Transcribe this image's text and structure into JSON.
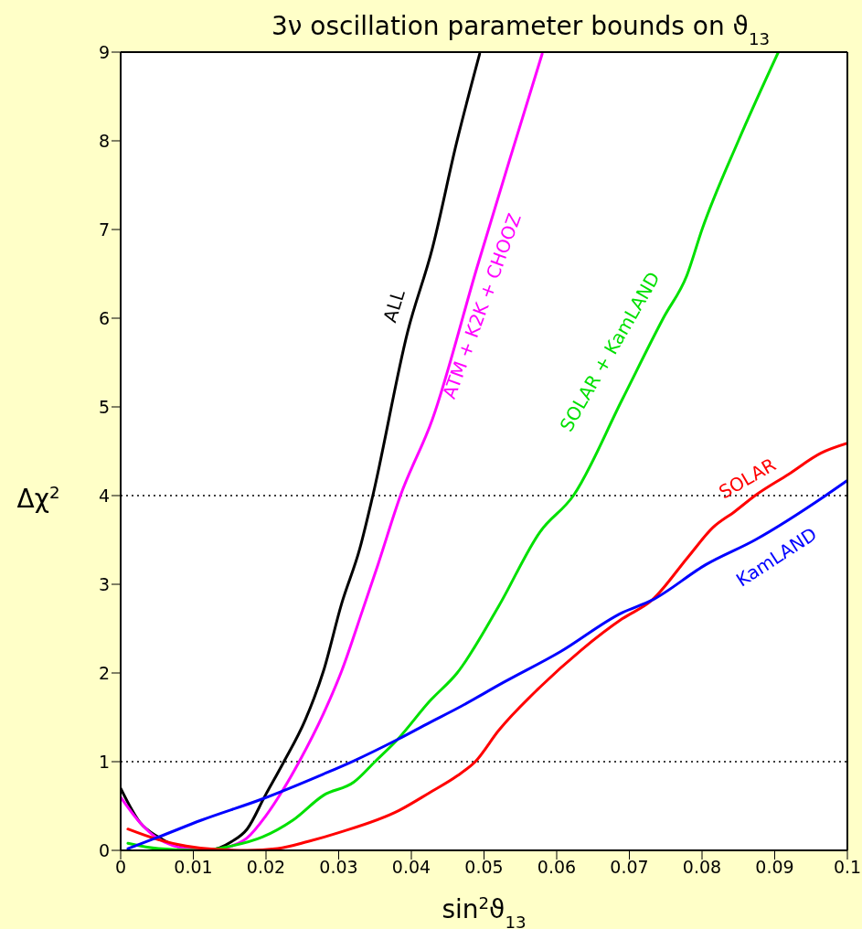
{
  "chart_data": {
    "type": "line",
    "title": "3ν oscillation parameter bounds on ϑ$_{13}$",
    "xlabel": "sin$^{2}$ϑ$_{13}$",
    "ylabel": "Δχ$^{2}$",
    "xlim": [
      0,
      0.1
    ],
    "xticks": [
      0,
      0.01,
      0.02,
      0.03,
      0.04,
      0.05,
      0.06,
      0.07,
      0.08,
      0.09,
      {
        "value": 0.1,
        "label": "0.1"
      }
    ],
    "ylim": [
      0,
      9
    ],
    "yticks": [
      0,
      1,
      2,
      3,
      4,
      5,
      6,
      7,
      8,
      9
    ],
    "ref_lines": [
      {
        "axis": "y",
        "value": 1,
        "color": "#000000",
        "line_style": "dotted"
      },
      {
        "axis": "y",
        "value": 4,
        "color": "#000000",
        "line_style": "dotted"
      }
    ],
    "series": [
      {
        "name": "ALL",
        "color": "#000000",
        "x": [
          0,
          0.0027,
          0.0052,
          0.009,
          0.012,
          0.0153,
          0.0174,
          0.0199,
          0.0224,
          0.0254,
          0.0279,
          0.0304,
          0.0329,
          0.0347,
          0.0395,
          0.0429,
          0.0462,
          0.0494
        ],
        "values": [
          0.7,
          0.31,
          0.15,
          0.02,
          0,
          0.1,
          0.24,
          0.62,
          0.99,
          1.47,
          2.02,
          2.78,
          3.4,
          4.0,
          5.85,
          6.79,
          7.97,
          8.98
        ]
      },
      {
        "name": "ATM + K2K + CHOOZ",
        "color": "#ff00ff",
        "x": [
          0,
          0.0027,
          0.005,
          0.01,
          0.013,
          0.0153,
          0.0174,
          0.0199,
          0.0224,
          0.0245,
          0.0279,
          0.0304,
          0.0333,
          0.0354,
          0.0385,
          0.0429,
          0.0491,
          0.0535,
          0.058
        ],
        "values": [
          0.6,
          0.31,
          0.14,
          0.01,
          0,
          0.05,
          0.14,
          0.38,
          0.69,
          0.99,
          1.54,
          2.02,
          2.71,
          3.22,
          4.0,
          4.86,
          6.59,
          7.78,
          8.98
        ]
      },
      {
        "name": "SOLAR + KamLAND",
        "color": "#00e000",
        "x": [
          0.001,
          0.0052,
          0.011,
          0.0153,
          0.0195,
          0.0237,
          0.0279,
          0.0321,
          0.035,
          0.0381,
          0.0425,
          0.0463,
          0.052,
          0.0577,
          0.0623,
          0.069,
          0.0748,
          0.0779,
          0.08,
          0.085,
          0.0905
        ],
        "values": [
          0.08,
          0.02,
          0,
          0.05,
          0.15,
          0.34,
          0.62,
          0.77,
          1.0,
          1.25,
          1.68,
          2.0,
          2.75,
          3.59,
          4.0,
          5.08,
          6.02,
          6.48,
          7.0,
          8.0,
          9.0
        ]
      },
      {
        "name": "SOLAR",
        "color": "#ff0000",
        "x": [
          0.001,
          0.0052,
          0.009,
          0.0132,
          0.0174,
          0.0216,
          0.0258,
          0.03,
          0.0383,
          0.0425,
          0.0463,
          0.0488,
          0.052,
          0.0577,
          0.0634,
          0.069,
          0.0731,
          0.0781,
          0.0815,
          0.0845,
          0.0873,
          0.0919,
          0.0964,
          0.1
        ],
        "values": [
          0.24,
          0.12,
          0.05,
          0.01,
          0,
          0.02,
          0.1,
          0.2,
          0.45,
          0.65,
          0.84,
          1.0,
          1.35,
          1.84,
          2.26,
          2.61,
          2.82,
          3.31,
          3.64,
          3.82,
          4.0,
          4.24,
          4.48,
          4.59
        ]
      },
      {
        "name": "KamLAND",
        "color": "#0000ff",
        "x": [
          0.001,
          0.0052,
          0.0111,
          0.0195,
          0.0279,
          0.0321,
          0.0381,
          0.0425,
          0.0463,
          0.0526,
          0.0605,
          0.069,
          0.0731,
          0.0805,
          0.0873,
          0.097,
          0.1
        ],
        "values": [
          0.02,
          0.15,
          0.34,
          0.58,
          0.86,
          1.01,
          1.25,
          1.44,
          1.6,
          1.89,
          2.24,
          2.68,
          2.82,
          3.22,
          3.5,
          4.0,
          4.17
        ]
      }
    ]
  }
}
